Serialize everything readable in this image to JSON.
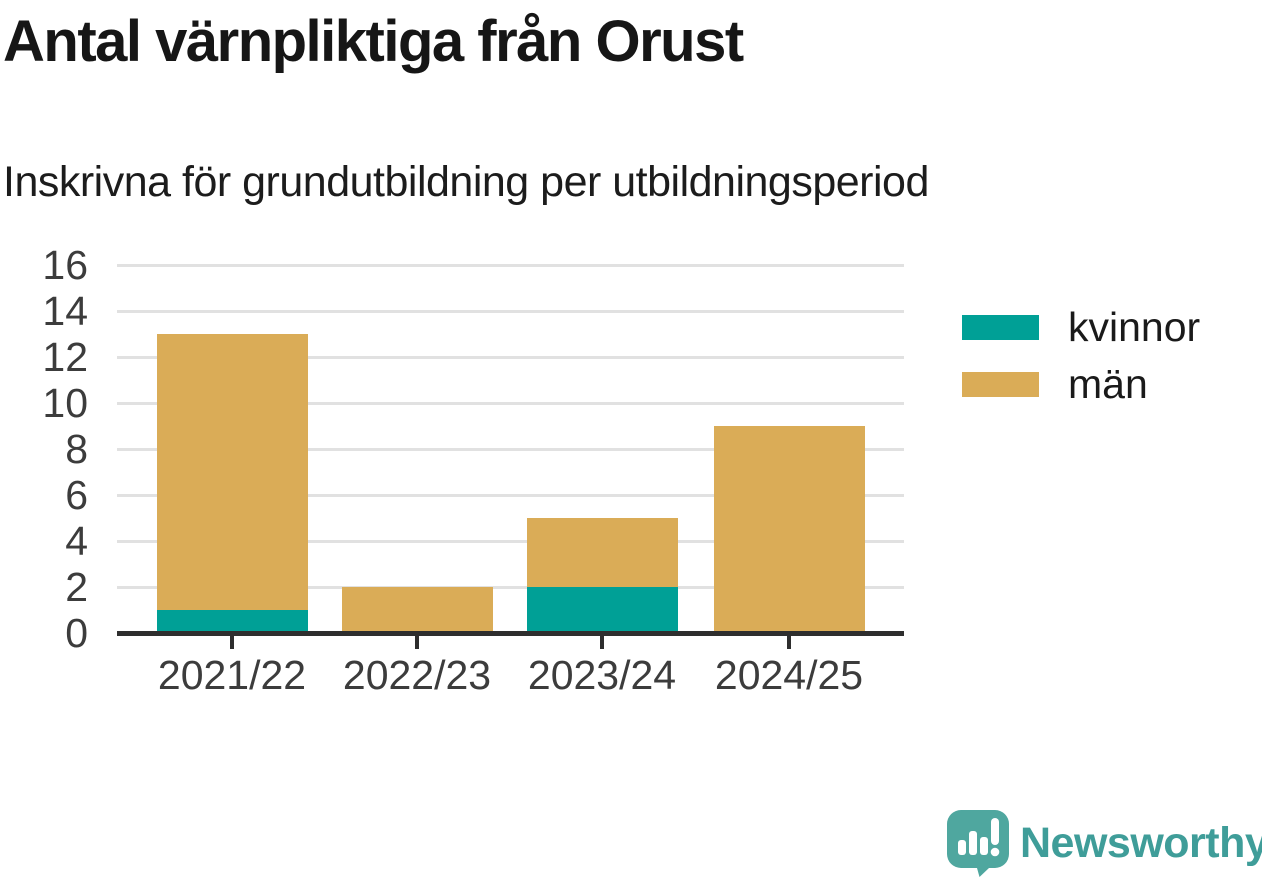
{
  "header": {
    "title": "Antal värnpliktiga från Orust",
    "subtitle": "Inskrivna för grundutbildning per utbildningsperiod"
  },
  "chart_data": {
    "type": "bar",
    "stacked": true,
    "categories": [
      "2021/22",
      "2022/23",
      "2023/24",
      "2024/25"
    ],
    "series": [
      {
        "name": "kvinnor",
        "color": "#00A096",
        "values": [
          1,
          0,
          2,
          0
        ]
      },
      {
        "name": "män",
        "color": "#DAAC57",
        "values": [
          12,
          2,
          3,
          9
        ]
      }
    ],
    "totals": [
      13,
      2,
      5,
      9
    ],
    "ylim": [
      0,
      16
    ],
    "yticks": [
      0,
      2,
      4,
      6,
      8,
      10,
      12,
      14,
      16
    ],
    "xlabel": "",
    "ylabel": "",
    "grid": true,
    "gridline_color": "#e1e1e1",
    "axis_color": "#2e2e2e",
    "legend_position": "right"
  },
  "branding": {
    "name": "Newsworthy",
    "color": "#3f9d99",
    "icon": "speech-bubble-bar-chart"
  }
}
